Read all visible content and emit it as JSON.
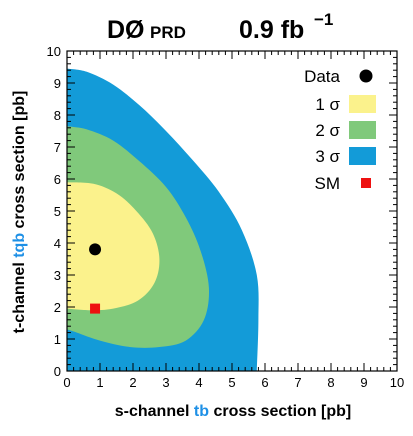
{
  "header": {
    "experiment": "DØ",
    "tag": "PRD",
    "luminosity": "0.9 fb",
    "luminosity_sup": "−1"
  },
  "chart_data": {
    "type": "contour",
    "xlabel": {
      "prefix": "s-channel ",
      "accent": "tb",
      "suffix": " cross section [pb]"
    },
    "ylabel": {
      "prefix": "t-channel ",
      "accent": "tqb",
      "suffix": " cross section [pb]"
    },
    "xlim": [
      0,
      10
    ],
    "ylim": [
      0,
      10
    ],
    "xticks": [
      0,
      1,
      2,
      3,
      4,
      5,
      6,
      7,
      8,
      9,
      10
    ],
    "yticks": [
      0,
      1,
      2,
      3,
      4,
      5,
      6,
      7,
      8,
      9,
      10
    ],
    "grid": false,
    "legend_position": "top-right",
    "legend": [
      {
        "key": "data",
        "label": "Data",
        "color": "#000000",
        "marker": "circle"
      },
      {
        "key": "s1",
        "label": "1 σ",
        "color": "#fbf28c",
        "marker": "box"
      },
      {
        "key": "s2",
        "label": "2 σ",
        "color": "#80c97b",
        "marker": "box"
      },
      {
        "key": "s3",
        "label": "3 σ",
        "color": "#139bd8",
        "marker": "box"
      },
      {
        "key": "sm",
        "label": "SM",
        "color": "#ee1111",
        "marker": "square"
      }
    ],
    "contours": [
      {
        "name": "3 σ",
        "color": "#139bd8",
        "points": [
          [
            0,
            9.45
          ],
          [
            0.6,
            9.35
          ],
          [
            1.4,
            8.95
          ],
          [
            2.2,
            8.3
          ],
          [
            3.0,
            7.5
          ],
          [
            3.8,
            6.6
          ],
          [
            4.6,
            5.6
          ],
          [
            5.3,
            4.4
          ],
          [
            5.75,
            3.0
          ],
          [
            5.8,
            1.6
          ],
          [
            5.75,
            0
          ]
        ]
      },
      {
        "name": "2 σ",
        "color": "#80c97b",
        "points": [
          [
            0,
            7.65
          ],
          [
            0.6,
            7.55
          ],
          [
            1.4,
            7.2
          ],
          [
            2.2,
            6.55
          ],
          [
            3.0,
            5.75
          ],
          [
            3.6,
            4.8
          ],
          [
            4.05,
            3.75
          ],
          [
            4.3,
            2.6
          ],
          [
            4.15,
            1.6
          ],
          [
            3.6,
            0.95
          ],
          [
            2.8,
            0.75
          ],
          [
            1.9,
            0.75
          ],
          [
            1.0,
            0.95
          ],
          [
            0.3,
            1.2
          ],
          [
            0,
            1.3
          ]
        ]
      },
      {
        "name": "1 σ",
        "color": "#fbf28c",
        "points": [
          [
            0,
            5.9
          ],
          [
            0.8,
            5.85
          ],
          [
            1.5,
            5.55
          ],
          [
            2.1,
            5.0
          ],
          [
            2.6,
            4.3
          ],
          [
            2.8,
            3.5
          ],
          [
            2.65,
            2.75
          ],
          [
            2.15,
            2.2
          ],
          [
            1.4,
            1.95
          ],
          [
            0.7,
            1.9
          ],
          [
            0,
            1.95
          ]
        ]
      }
    ],
    "data_point": {
      "name": "Data",
      "x": 0.85,
      "y": 3.8,
      "color": "#000000"
    },
    "sm_point": {
      "name": "SM",
      "x": 0.85,
      "y": 1.95,
      "color": "#ee1111"
    }
  }
}
